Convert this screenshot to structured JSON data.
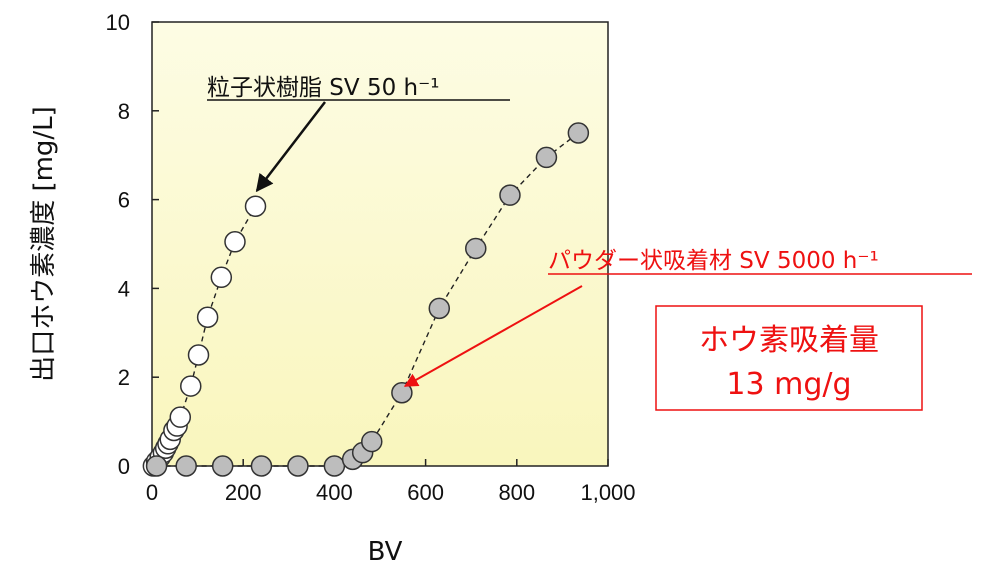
{
  "chart_data": {
    "type": "scatter",
    "xlabel": "BV",
    "ylabel": "出口ホウ素濃度 [mg/L]",
    "xlim": [
      0,
      1000
    ],
    "ylim": [
      0,
      10
    ],
    "x_ticks": [
      "0",
      "200",
      "400",
      "600",
      "800",
      "1,000"
    ],
    "y_ticks": [
      "0",
      "2",
      "4",
      "6",
      "8",
      "10"
    ],
    "grid": false,
    "background_gradient": [
      "#fdfce4",
      "#f9f6bd"
    ],
    "series": [
      {
        "name": "粒子状樹脂 SV 50 h⁻¹",
        "marker_fill": "#ffffff",
        "marker_stroke": "#333333",
        "line_style": "dashed",
        "x": [
          3,
          10,
          18,
          25,
          30,
          35,
          40,
          48,
          55,
          62,
          85,
          102,
          122,
          152,
          182,
          227
        ],
        "y": [
          0.0,
          0.1,
          0.2,
          0.3,
          0.4,
          0.5,
          0.6,
          0.8,
          0.9,
          1.1,
          1.8,
          2.5,
          3.35,
          4.25,
          5.05,
          5.85
        ]
      },
      {
        "name": "パウダー状吸着材 SV 5000 h⁻¹",
        "marker_fill": "#bdbdbd",
        "marker_stroke": "#333333",
        "line_style": "dashed",
        "x": [
          10,
          75,
          155,
          240,
          320,
          400,
          440,
          462,
          482,
          548,
          630,
          710,
          785,
          865,
          935
        ],
        "y": [
          0.0,
          0.0,
          0.0,
          0.0,
          0.0,
          0.0,
          0.15,
          0.3,
          0.55,
          1.65,
          3.55,
          4.9,
          6.1,
          6.95,
          7.5
        ]
      }
    ],
    "annotations": [
      {
        "id": "resin",
        "text": "粒子状樹脂 SV 50 h⁻¹",
        "color": "#111111",
        "underline": true,
        "arrow_target": [
          230,
          6.2
        ]
      },
      {
        "id": "powder",
        "text": "パウダー状吸着材 SV 5000 h⁻¹",
        "color": "#ee1111",
        "underline": true,
        "arrow_target": [
          555,
          1.8
        ]
      }
    ],
    "callout": {
      "lines": [
        "ホウ素吸着量",
        "13 mg/g"
      ],
      "color": "#ee1111",
      "border_color": "#ee1111"
    }
  }
}
